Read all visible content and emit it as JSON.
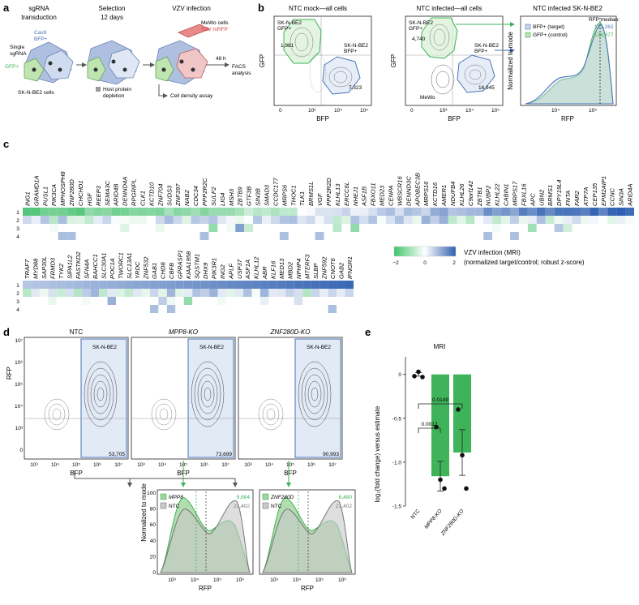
{
  "panels": {
    "a": {
      "letter": "a",
      "steps": [
        "sgRNA",
        "transduction",
        "Selection",
        "12 days",
        "VZV infection"
      ],
      "single_sgrna": [
        "Single",
        "sgRNA"
      ],
      "cas9": "Cas9",
      "bfp": "BFP+",
      "gfp": "GFP+",
      "cells": "SK-N-BE2 cells",
      "host_depletion": "Host protein",
      "host_depletion2": "depletion",
      "mewo": "MeWo cells",
      "vzv_mrfp": "VZV mRFP",
      "facs_time": "48 h",
      "facs": [
        "FACS",
        "analysis"
      ],
      "density": "Cell density assay"
    },
    "b": {
      "letter": "b",
      "mock_title": "NTC mock—all cells",
      "infected_title": "NTC infected—all cells",
      "hist_title": "NTC infected SK-N-BE2",
      "gfp_gate": [
        "SK-N-BE2",
        "GFP+"
      ],
      "bfp_gate": [
        "SK-N-BE2",
        "BFP+"
      ],
      "mock_counts": {
        "gfp": "1,981",
        "bfp": "7,323"
      },
      "infected_counts": {
        "gfp": "4,740",
        "bfp": "16,945"
      },
      "mewo": "MeWo",
      "xlabel": "BFP",
      "ylabel": "GFP",
      "hist_xlabel": "RFP",
      "hist_ylabel": "Normalized to mode",
      "legend": [
        {
          "name": "BFP+ (target)",
          "median": "121,262"
        },
        {
          "name": "GFP+ (control)",
          "median": "126,877"
        }
      ],
      "median_label": "RFP median:"
    },
    "c": {
      "letter": "c",
      "rows": [
        "1",
        "2",
        "3",
        "4"
      ],
      "genes_top": [
        "ING1",
        "GRAMD1A",
        "PUSL1",
        "PIK3CA",
        "MPHOSPH8",
        "ZNF280D",
        "CHCHD1",
        "HGF",
        "REEP3",
        "SEMA3C",
        "ARID4B",
        "DENND4A",
        "RPGRIPL",
        "CLK1",
        "KCTD10",
        "ZNF704",
        "SUDS3",
        "ZNF397",
        "NAB2",
        "CDC34",
        "PPP2R2C",
        "SULF2",
        "LIG4",
        "MSH3",
        "ZBTB9",
        "GTF3B",
        "SIN3B",
        "SMAD3",
        "CCDC177",
        "MRPS6",
        "THOC1",
        "TLK1",
        "BRMS1L",
        "VGF",
        "PPP2R2D",
        "KLHL13",
        "ERCC6L",
        "NHEJ1",
        "ASF1B",
        "FBXO11",
        "MED23",
        "CENPA",
        "WBSCR16",
        "DENND3C",
        "APOBEC3B",
        "MRPS16",
        "KCTD16",
        "AMER1",
        "NDUFB4",
        "KLHL26",
        "C9orf142",
        "ZBTB1",
        "NUBP2",
        "KLHL22",
        "CABIN1",
        "MRPS17",
        "FBXL16",
        "APC",
        "UBN2",
        "BRMS1",
        "DPY19L4",
        "FNTA",
        "FAR2",
        "ATP7A",
        "CEP135",
        "EPM2AIP1",
        "CCNC",
        "SIN3A",
        "ARID4A"
      ],
      "genes_bottom": [
        "TRAF7",
        "MYD88",
        "SAP30L",
        "FRMD3",
        "TYK2",
        "SIPA1L2",
        "FASTKD2",
        "SFN4A",
        "BAHCC1",
        "SLC30A1",
        "POC1A",
        "TWORC1",
        "SLC13A1",
        "YRDC",
        "ZNF532",
        "GAB1",
        "CHD8",
        "CBFB",
        "GPRASP1",
        "KIAA1958",
        "SQSTM1",
        "DHX9",
        "PIK3R1",
        "ING2",
        "APLF",
        "USP37",
        "ASF1A",
        "KLHL12",
        "ABR",
        "KLF16",
        "MED13",
        "MBD2",
        "NPHP4",
        "MTERF3",
        "SLBP",
        "ZNF592",
        "CNOT6",
        "GAB2",
        "IFNGR1"
      ],
      "colorbar_ticks": [
        "−2",
        "0",
        "2"
      ],
      "colorbar_label": [
        "VZV infection (MRI)",
        "(normalized target/control; robust z-score)"
      ]
    },
    "d": {
      "letter": "d",
      "plots": [
        {
          "title": "NTC",
          "gate": "SK-N-BE2",
          "count": "53,705"
        },
        {
          "title": "MPP8-KO",
          "gate": "SK-N-BE2",
          "count": "73,699"
        },
        {
          "title": "ZNF280D-KO",
          "gate": "SK-N-BE2",
          "count": "90,993"
        }
      ],
      "xlabel": "BFP",
      "ylabel": "RFP",
      "hist": [
        {
          "target": "MPP8",
          "target_median": "9,684",
          "ctrl": "NTC",
          "ctrl_median": "21,402"
        },
        {
          "target": "ZNF280D",
          "target_median": "8,480",
          "ctrl": "NTC",
          "ctrl_median": "21,402"
        }
      ],
      "hist_xlabel": "RFP",
      "hist_ylabel": "Normalized to mode",
      "hist_yticks": [
        "0",
        "20",
        "40",
        "60",
        "80",
        "100"
      ]
    },
    "e": {
      "letter": "e",
      "title": "MRI",
      "ylabel": "log₂(fold change) versus estimate",
      "pvals": [
        "0.0012",
        "0.0149"
      ]
    }
  },
  "chart_data": {
    "type": "bar",
    "title": "MRI",
    "categories": [
      "NTC",
      "MPP8-KO",
      "ZNF280D-KO"
    ],
    "values": [
      0,
      -1.16,
      -0.89
    ],
    "errors": [
      0.02,
      0.17,
      0.26
    ],
    "points": [
      [
        -0.02,
        0.03,
        -0.03
      ],
      [
        -0.6,
        -1.2,
        -1.3
      ],
      [
        -0.4,
        -0.92,
        -1.3
      ]
    ],
    "xlabel": "",
    "ylabel": "log₂(fold change) versus estimate",
    "ylim": [
      -1.5,
      0.2
    ],
    "yticks": [
      0,
      -0.5,
      -1.0,
      -1.5
    ],
    "pvalues": [
      {
        "pair": [
          "NTC",
          "MPP8-KO"
        ],
        "p": "0.0012"
      },
      {
        "pair": [
          "NTC",
          "ZNF280D-KO"
        ],
        "p": "0.0149"
      }
    ],
    "color": "#3fb35a"
  },
  "colors": {
    "green": "#3fb35a",
    "blue": "#4a72b8",
    "gate_fill": "#dbe5f3",
    "grey": "#9a9a9a"
  }
}
